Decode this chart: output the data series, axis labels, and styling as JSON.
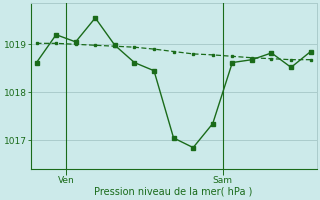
{
  "xlabel": "Pression niveau de la mer( hPa )",
  "bg_color": "#cceaea",
  "line_color": "#1a6b1a",
  "grid_color": "#aacccc",
  "x_values": [
    0,
    1,
    2,
    3,
    4,
    5,
    6,
    7,
    8,
    9,
    10,
    11,
    12,
    13,
    14
  ],
  "y_main": [
    1018.62,
    1019.2,
    1019.05,
    1019.55,
    1018.98,
    1018.62,
    1018.45,
    1017.05,
    1016.85,
    1017.35,
    1018.62,
    1018.68,
    1018.82,
    1018.52,
    1018.85
  ],
  "y_smooth": [
    1019.02,
    1019.02,
    1019.0,
    1018.98,
    1018.96,
    1018.94,
    1018.9,
    1018.85,
    1018.8,
    1018.78,
    1018.75,
    1018.72,
    1018.7,
    1018.68,
    1018.68
  ],
  "ven_x": 1.5,
  "sam_x": 9.5,
  "yticks": [
    1017,
    1018,
    1019
  ],
  "ylim": [
    1016.4,
    1019.85
  ],
  "xlim": [
    -0.3,
    14.3
  ]
}
